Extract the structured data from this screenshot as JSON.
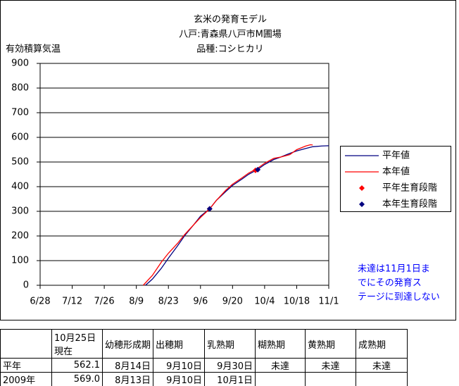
{
  "chart_data": {
    "type": "line",
    "title": [
      "玄米の発育モデル",
      "八戸:青森県八戸市M圃場",
      "品種:コシヒカリ"
    ],
    "y_label": "有効積算気温",
    "xlim": [
      0,
      126
    ],
    "xticks": [
      {
        "value": 0,
        "label": "6/28"
      },
      {
        "value": 14,
        "label": "7/12"
      },
      {
        "value": 28,
        "label": "7/26"
      },
      {
        "value": 42,
        "label": "8/9"
      },
      {
        "value": 56,
        "label": "8/23"
      },
      {
        "value": 70,
        "label": "9/6"
      },
      {
        "value": 84,
        "label": "9/20"
      },
      {
        "value": 98,
        "label": "10/4"
      },
      {
        "value": 112,
        "label": "10/18"
      },
      {
        "value": 126,
        "label": "11/1"
      }
    ],
    "ylim": [
      0,
      900
    ],
    "yticks": [
      0,
      100,
      200,
      300,
      400,
      500,
      600,
      700,
      800,
      900
    ],
    "grid": true,
    "legend": "right",
    "series": [
      {
        "name": "平年値",
        "type": "line",
        "color": "#000080",
        "x": [
          46,
          49,
          53,
          56,
          60,
          63,
          67,
          70,
          74,
          77,
          81,
          84,
          88,
          91,
          95,
          98,
          102,
          105,
          109,
          112,
          116,
          119,
          123,
          126
        ],
        "values": [
          0,
          25,
          70,
          110,
          160,
          200,
          245,
          280,
          310,
          345,
          380,
          405,
          430,
          450,
          470,
          490,
          510,
          520,
          535,
          545,
          555,
          562,
          565,
          566
        ]
      },
      {
        "name": "本年値",
        "type": "line",
        "color": "#ff0000",
        "x": [
          45,
          49,
          53,
          56,
          60,
          63,
          67,
          70,
          74,
          77,
          81,
          84,
          88,
          91,
          95,
          98,
          102,
          105,
          109,
          112,
          116,
          118,
          119
        ],
        "values": [
          0,
          40,
          95,
          130,
          170,
          205,
          245,
          275,
          310,
          345,
          385,
          410,
          435,
          455,
          475,
          495,
          515,
          520,
          530,
          550,
          565,
          570,
          569
        ]
      },
      {
        "name": "平年生育段階",
        "type": "scatter",
        "color": "#ff0000",
        "x": [
          74,
          94
        ],
        "values": [
          310,
          466
        ]
      },
      {
        "name": "本年生育段階",
        "type": "scatter",
        "color": "#000080",
        "x": [
          74,
          95
        ],
        "values": [
          310,
          469
        ]
      }
    ],
    "annotation": [
      "未達は11月1日ま",
      "でにその発育ス",
      "テージに到達しない"
    ]
  },
  "table": {
    "header": [
      null,
      "10月25日現在",
      "幼穂形成期",
      "出穂期",
      "乳熟期",
      "糊熟期",
      "黄熟期",
      "成熟期"
    ],
    "rows": [
      [
        "平年",
        "562.1",
        "8月14日",
        "9月10日",
        "9月30日",
        "未達",
        "未達",
        "未達"
      ],
      [
        "2009年",
        "569.0",
        "8月13日",
        "9月10日",
        "10月1日",
        null,
        null,
        null
      ]
    ]
  }
}
